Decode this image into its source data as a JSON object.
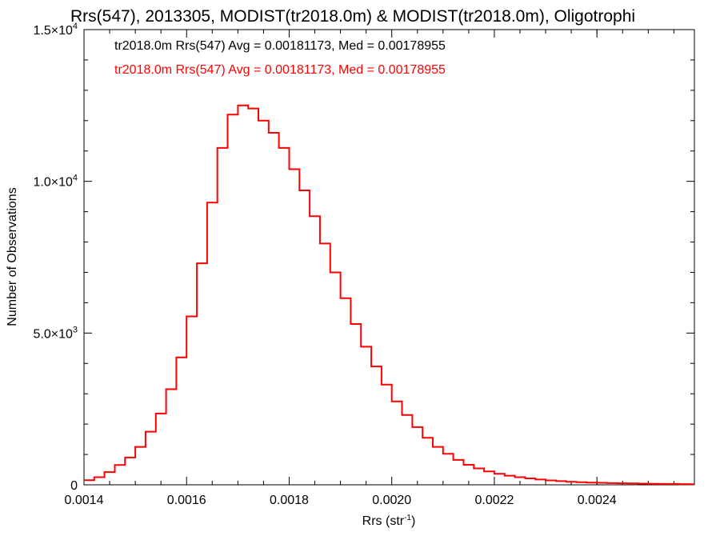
{
  "chart_data": {
    "type": "line",
    "title": "Rrs(547), 2013305, MODIST(tr2018.0m) & MODIST(tr2018.0m), Oligotrophi",
    "xlabel": "Rrs (str",
    "xlabel_sup": "-1",
    "xlabel_end": ")",
    "ylabel": "Number of Observations",
    "xlim": [
      0.0014,
      0.00259
    ],
    "ylim": [
      0,
      15000
    ],
    "x_ticks": [
      {
        "value": 0.0014,
        "label": "0.0014"
      },
      {
        "value": 0.0016,
        "label": "0.0016"
      },
      {
        "value": 0.0018,
        "label": "0.0018"
      },
      {
        "value": 0.002,
        "label": "0.0020"
      },
      {
        "value": 0.0022,
        "label": "0.0022"
      },
      {
        "value": 0.0024,
        "label": "0.0024"
      }
    ],
    "y_ticks": [
      {
        "value": 0,
        "mant": "0",
        "exp": ""
      },
      {
        "value": 5000,
        "mant": "5.0×10",
        "exp": "3"
      },
      {
        "value": 10000,
        "mant": "1.0×10",
        "exp": "4"
      },
      {
        "value": 15000,
        "mant": "1.5×10",
        "exp": "4"
      }
    ],
    "legend_placement": "top-left",
    "annotations": [
      {
        "text": "tr2018.0m Rrs(547) Avg = 0.00181173, Med = 0.00178955",
        "color": "#000000"
      },
      {
        "text": "tr2018.0m Rrs(547) Avg = 0.00181173, Med = 0.00178955",
        "color": "#ff0000"
      }
    ],
    "series": [
      {
        "color": "#ff0000",
        "x": [
          0.0014,
          0.00142,
          0.00144,
          0.00146,
          0.00148,
          0.0015,
          0.00152,
          0.00154,
          0.00156,
          0.00158,
          0.0016,
          0.00162,
          0.00164,
          0.00166,
          0.00168,
          0.0017,
          0.00172,
          0.00174,
          0.00176,
          0.00178,
          0.0018,
          0.00182,
          0.00184,
          0.00186,
          0.00188,
          0.0019,
          0.00192,
          0.00194,
          0.00196,
          0.00198,
          0.002,
          0.00202,
          0.00204,
          0.00206,
          0.00208,
          0.0021,
          0.00212,
          0.00214,
          0.00216,
          0.00218,
          0.0022,
          0.00222,
          0.00224,
          0.00226,
          0.00228,
          0.0023,
          0.00232,
          0.00234,
          0.00236,
          0.00238,
          0.0024,
          0.00242,
          0.00244,
          0.00246,
          0.00248,
          0.0025,
          0.00252,
          0.00254,
          0.00256,
          0.00258
        ],
        "values": [
          150,
          250,
          420,
          650,
          900,
          1250,
          1750,
          2350,
          3150,
          4200,
          5550,
          7300,
          9300,
          11100,
          12200,
          12500,
          12400,
          12000,
          11600,
          11100,
          10400,
          9700,
          8850,
          7950,
          7000,
          6150,
          5300,
          4550,
          3900,
          3300,
          2750,
          2300,
          1900,
          1550,
          1250,
          1020,
          820,
          660,
          540,
          440,
          360,
          300,
          250,
          210,
          175,
          145,
          120,
          100,
          85,
          75,
          65,
          55,
          50,
          45,
          40,
          35,
          30,
          28,
          25,
          22
        ]
      }
    ]
  }
}
